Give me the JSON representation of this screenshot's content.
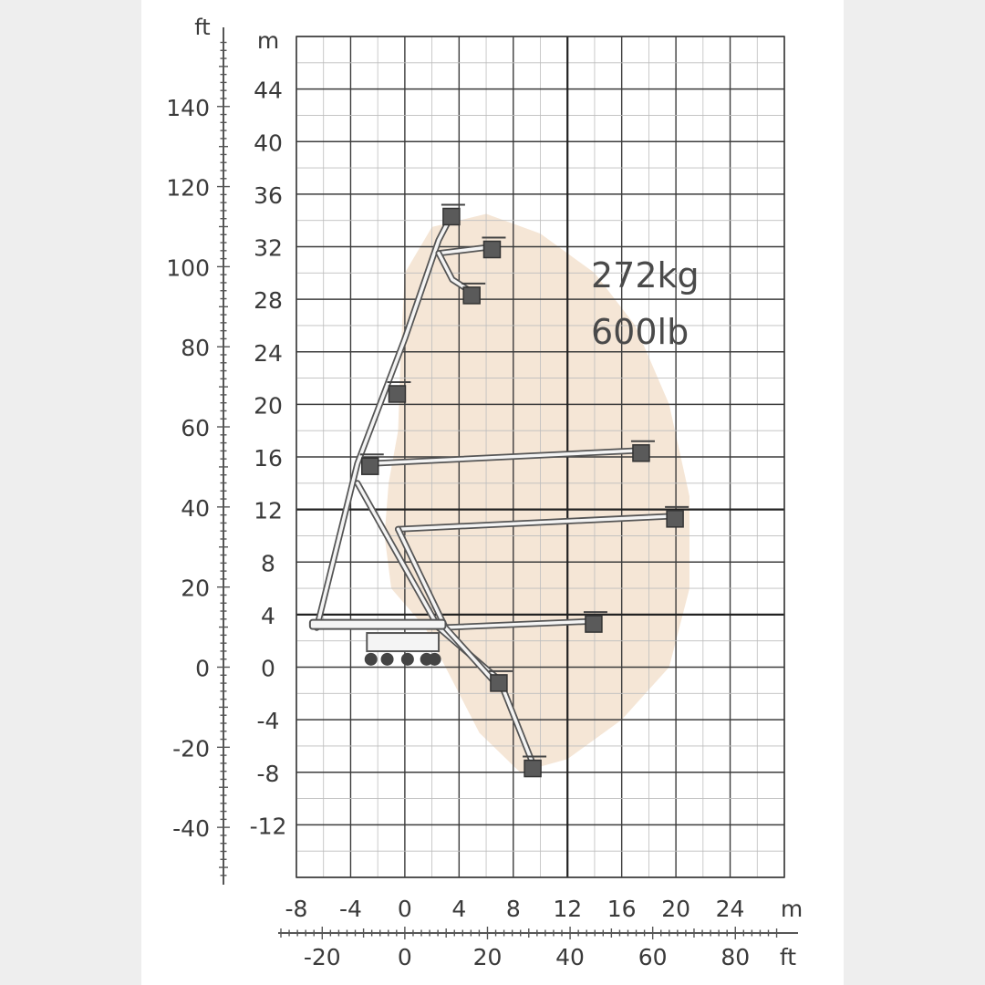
{
  "chart_data": {
    "type": "scatter",
    "title": "",
    "xlabel": "",
    "ylabel": "",
    "x_unit_primary": "m",
    "x_unit_secondary": "ft",
    "y_unit_primary": "m",
    "y_unit_secondary": "ft",
    "xlim_m": [
      -8,
      28
    ],
    "ylim_m": [
      -16,
      48
    ],
    "x_ticks_m": [
      -8,
      -4,
      0,
      4,
      8,
      12,
      16,
      20,
      24
    ],
    "y_ticks_m": [
      44,
      40,
      36,
      32,
      28,
      24,
      20,
      16,
      12,
      8,
      4,
      0,
      -4,
      -8,
      -12
    ],
    "x_ticks_ft": [
      -20,
      0,
      20,
      40,
      60,
      80
    ],
    "y_ticks_ft": [
      140,
      120,
      100,
      80,
      60,
      40,
      20,
      0,
      -20,
      -40
    ],
    "grid": true,
    "load_labels": [
      "272kg",
      "600lb"
    ],
    "working_envelope": {
      "color": "#f5e6d6",
      "outline_m": [
        [
          0,
          30
        ],
        [
          2,
          33.5
        ],
        [
          6,
          34.5
        ],
        [
          10,
          33
        ],
        [
          14,
          30
        ],
        [
          17,
          26
        ],
        [
          19.5,
          20
        ],
        [
          21,
          13
        ],
        [
          21,
          6
        ],
        [
          19.5,
          0
        ],
        [
          16,
          -4
        ],
        [
          12,
          -7
        ],
        [
          8.5,
          -8
        ],
        [
          5.5,
          -5
        ],
        [
          3.5,
          -1
        ],
        [
          1.5,
          3
        ],
        [
          -1,
          6
        ],
        [
          -1.5,
          10
        ],
        [
          -1.2,
          14
        ],
        [
          -0.5,
          18
        ],
        [
          -0.3,
          24
        ],
        [
          0,
          30
        ]
      ]
    },
    "series": [
      {
        "points_m": [
          [
            -6.5,
            3
          ],
          [
            -3.5,
            15.5
          ],
          [
            0,
            25
          ],
          [
            2.5,
            32.5
          ],
          [
            3.5,
            34.5
          ]
        ]
      },
      {
        "points_m": [
          [
            2.5,
            31.5
          ],
          [
            6.5,
            32
          ]
        ]
      },
      {
        "points_m": [
          [
            2.5,
            31.5
          ],
          [
            3.5,
            29.5
          ],
          [
            5,
            28.5
          ]
        ]
      },
      {
        "points_m": [
          [
            -2.5,
            15.5
          ],
          [
            17.5,
            16.5
          ]
        ]
      },
      {
        "points_m": [
          [
            -0.5,
            10.5
          ],
          [
            20,
            11.5
          ]
        ]
      },
      {
        "points_m": [
          [
            2.5,
            3
          ],
          [
            14,
            3.5
          ]
        ]
      },
      {
        "points_m": [
          [
            -3.5,
            14
          ],
          [
            2.5,
            3
          ],
          [
            7,
            -1
          ],
          [
            9.5,
            -7.5
          ]
        ]
      },
      {
        "points_m": [
          [
            -0.5,
            10.5
          ],
          [
            3,
            3
          ],
          [
            6.5,
            -1
          ]
        ]
      }
    ],
    "baskets_m": [
      [
        3.5,
        34.5
      ],
      [
        6.5,
        32
      ],
      [
        5,
        28.5
      ],
      [
        -0.5,
        21
      ],
      [
        -2.5,
        15.5
      ],
      [
        17.5,
        16.5
      ],
      [
        20,
        11.5
      ],
      [
        14,
        3.5
      ],
      [
        7,
        -1
      ],
      [
        9.5,
        -7.5
      ]
    ]
  }
}
